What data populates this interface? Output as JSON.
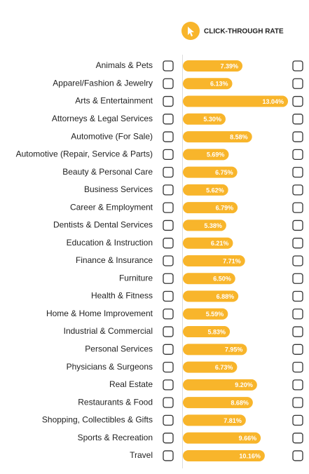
{
  "chart_data": {
    "type": "bar",
    "orientation": "horizontal",
    "title": "CLICK-THROUGH RATE",
    "categories": [
      "Animals & Pets",
      "Apparel/Fashion & Jewelry",
      "Arts & Entertainment",
      "Attorneys & Legal Services",
      "Automotive (For Sale)",
      "Automotive (Repair, Service & Parts)",
      "Beauty & Personal Care",
      "Business Services",
      "Career & Employment",
      "Dentists & Dental Services",
      "Education & Instruction",
      "Finance & Insurance",
      "Furniture",
      "Health & Fitness",
      "Home & Home Improvement",
      "Industrial & Commercial",
      "Personal Services",
      "Physicians & Surgeons",
      "Real Estate",
      "Restaurants & Food",
      "Shopping, Collectibles & Gifts",
      "Sports & Recreation",
      "Travel"
    ],
    "values": [
      7.39,
      6.13,
      13.04,
      5.3,
      8.58,
      5.69,
      6.75,
      5.62,
      6.79,
      5.38,
      6.21,
      7.71,
      6.5,
      6.88,
      5.59,
      5.83,
      7.95,
      6.73,
      9.2,
      8.68,
      7.81,
      9.66,
      10.16
    ],
    "value_labels": [
      "7.39%",
      "6.13%",
      "13.04%",
      "5.30%",
      "8.58%",
      "5.69%",
      "6.75%",
      "5.62%",
      "6.79%",
      "5.38%",
      "6.21%",
      "7.71%",
      "6.50%",
      "6.88%",
      "5.59%",
      "5.83%",
      "7.95%",
      "6.73%",
      "9.20%",
      "8.68%",
      "7.81%",
      "9.66%",
      "10.16%"
    ],
    "color": "#f8b52b"
  }
}
